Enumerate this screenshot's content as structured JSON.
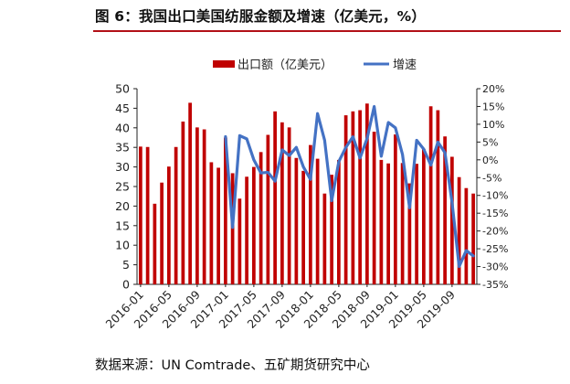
{
  "title": "图 6：我国出口美国纺服金额及增速（亿美元，%）",
  "source": "数据来源：UN Comtrade、五矿期货研究中心",
  "colors": {
    "bar": "#c00000",
    "line": "#4472c4",
    "title_rule": "#b21017"
  },
  "chart_data": {
    "type": "bar",
    "legend": {
      "placement": "top",
      "items": [
        "出口额（亿美元）",
        "增速"
      ]
    },
    "x_tick_labels": [
      "2016-01",
      "2016-05",
      "2016-09",
      "2017-01",
      "2017-05",
      "2017-09",
      "2018-01",
      "2018-05",
      "2018-09",
      "2019-01",
      "2019-05",
      "2019-09"
    ],
    "x": [
      "2016-01",
      "2016-02",
      "2016-03",
      "2016-04",
      "2016-05",
      "2016-06",
      "2016-07",
      "2016-08",
      "2016-09",
      "2016-10",
      "2016-11",
      "2016-12",
      "2017-01",
      "2017-02",
      "2017-03",
      "2017-04",
      "2017-05",
      "2017-06",
      "2017-07",
      "2017-08",
      "2017-09",
      "2017-10",
      "2017-11",
      "2017-12",
      "2018-01",
      "2018-02",
      "2018-03",
      "2018-04",
      "2018-05",
      "2018-06",
      "2018-07",
      "2018-08",
      "2018-09",
      "2018-10",
      "2018-11",
      "2018-12",
      "2019-01",
      "2019-02",
      "2019-03",
      "2019-04",
      "2019-05",
      "2019-06",
      "2019-07",
      "2019-08",
      "2019-09",
      "2019-10",
      "2019-11",
      "2019-12"
    ],
    "y_left": {
      "ticks": [
        0,
        5,
        10,
        15,
        20,
        25,
        30,
        35,
        40,
        45,
        50
      ],
      "ylim": [
        0,
        50
      ]
    },
    "y_right": {
      "ticks": [
        "20%",
        "15%",
        "10%",
        "5%",
        "0%",
        "-5%",
        "-10%",
        "-15%",
        "-20%",
        "-25%",
        "-30%",
        "-35%"
      ],
      "ylim": [
        -35,
        20
      ]
    },
    "series": [
      {
        "name": "出口额（亿美元）",
        "type": "bar",
        "axis": "left",
        "values": [
          35.2,
          35.1,
          20.6,
          26.0,
          30.1,
          35.1,
          41.6,
          46.4,
          40.1,
          39.6,
          31.2,
          29.8,
          37.5,
          28.4,
          21.9,
          27.5,
          30.0,
          33.8,
          38.2,
          44.2,
          41.4,
          40.1,
          32.3,
          29.0,
          35.6,
          32.1,
          23.2,
          28.0,
          31.8,
          43.2,
          44.2,
          44.5,
          46.2,
          39.0,
          31.8,
          30.9,
          38.3,
          31.0,
          25.8,
          30.8,
          34.6,
          45.5,
          44.5,
          37.8,
          32.6,
          27.4,
          24.6,
          23.2
        ]
      },
      {
        "name": "增速",
        "type": "line",
        "axis": "right",
        "values": [
          null,
          null,
          null,
          null,
          null,
          null,
          null,
          null,
          null,
          null,
          null,
          null,
          6.5,
          -19.0,
          6.8,
          5.9,
          0.0,
          -3.7,
          -3.5,
          -6.0,
          2.8,
          1.2,
          3.5,
          -2.0,
          -5.5,
          13.0,
          5.5,
          -11.5,
          -0.5,
          3.5,
          6.5,
          0.5,
          6.0,
          15.0,
          1.0,
          10.5,
          9.0,
          1.5,
          -13.5,
          5.5,
          3.0,
          -1.5,
          5.0,
          2.0,
          -12.0,
          -30.0,
          -25.5,
          -27.0
        ]
      }
    ]
  }
}
